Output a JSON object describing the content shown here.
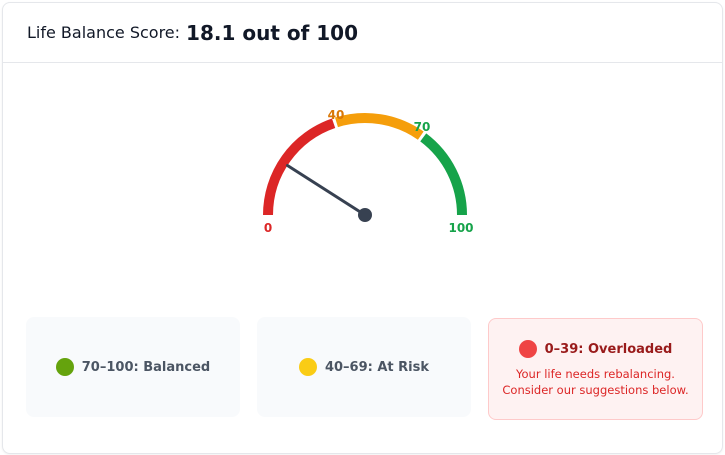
{
  "header": {
    "label": "Life Balance Score:",
    "value": "18.1 out of 100"
  },
  "gauge": {
    "value": 18.1,
    "min": 0,
    "max": 100,
    "segments": [
      {
        "from": 0,
        "to": 40,
        "color": "#dc2626"
      },
      {
        "from": 40,
        "to": 70,
        "color": "#f59e0b"
      },
      {
        "from": 70,
        "to": 100,
        "color": "#16a34a"
      }
    ],
    "labels": [
      {
        "text": "0",
        "color": "#dc2626"
      },
      {
        "text": "40",
        "color": "#d97706"
      },
      {
        "text": "70",
        "color": "#16a34a"
      },
      {
        "text": "100",
        "color": "#16a34a"
      }
    ],
    "needle_color": "#374151"
  },
  "legend": [
    {
      "icon": "green-circle",
      "color": "#65a30d",
      "label": "70–100: Balanced"
    },
    {
      "icon": "yellow-circle",
      "color": "#facc15",
      "label": "40–69: At Risk"
    },
    {
      "icon": "red-circle",
      "color": "#ef4444",
      "label": "0–39: Overloaded",
      "message": "Your life needs rebalancing. Consider our suggestions below."
    }
  ]
}
